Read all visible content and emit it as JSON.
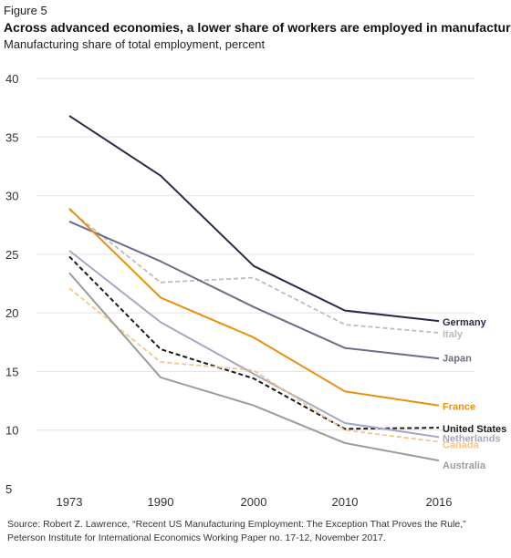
{
  "figure_label": "Figure 5",
  "title": "Across advanced economies, a lower share of workers are employed in manufacturing",
  "subtitle": "Manufacturing share of total employment, percent",
  "source_lines": [
    "Source: Robert Z. Lawrence, “Recent US Manufacturing Employment: The Exception That Proves the Rule,”",
    "Peterson Institute for International Economics Working Paper no. 17-12, November 2017."
  ],
  "chart_data": {
    "type": "line",
    "title": "Across advanced economies, a lower share of workers are employed in manufacturing",
    "subtitle": "Manufacturing share of total employment, percent",
    "x": [
      "1973",
      "1990",
      "2000",
      "2010",
      "2016"
    ],
    "ylim": [
      5,
      40
    ],
    "yticks": [
      5,
      10,
      15,
      20,
      25,
      30,
      35,
      40
    ],
    "grid": true,
    "legend": "direct labels at right",
    "series": [
      {
        "name": "Germany",
        "values": [
          36.8,
          31.7,
          24.0,
          20.2,
          19.3
        ],
        "color": "#2b2a45",
        "dash": "solid",
        "width": 2
      },
      {
        "name": "Italy",
        "values": [
          28.8,
          22.6,
          23.0,
          19.0,
          18.3
        ],
        "color": "#bdbdbd",
        "dash": "dashed",
        "width": 1.8
      },
      {
        "name": "Japan",
        "values": [
          27.8,
          24.4,
          20.5,
          17.0,
          16.1
        ],
        "color": "#6e6c86",
        "dash": "solid",
        "width": 2
      },
      {
        "name": "France",
        "values": [
          28.9,
          21.3,
          17.9,
          13.3,
          12.1
        ],
        "color": "#e8900f",
        "dash": "solid",
        "width": 2
      },
      {
        "name": "United States",
        "values": [
          24.8,
          16.9,
          14.4,
          10.1,
          10.2
        ],
        "color": "#1a1a1a",
        "dash": "dashed",
        "width": 2
      },
      {
        "name": "Netherlands",
        "values": [
          25.3,
          19.2,
          14.8,
          10.6,
          9.4
        ],
        "color": "#a8a6c2",
        "dash": "solid",
        "width": 2
      },
      {
        "name": "Canada",
        "values": [
          22.1,
          15.8,
          15.1,
          10.0,
          9.0
        ],
        "color": "#f5c684",
        "dash": "dashed",
        "width": 1.8
      },
      {
        "name": "Australia",
        "values": [
          23.4,
          14.5,
          12.1,
          8.9,
          7.4
        ],
        "color": "#9c9c9c",
        "dash": "solid",
        "width": 2
      }
    ]
  }
}
